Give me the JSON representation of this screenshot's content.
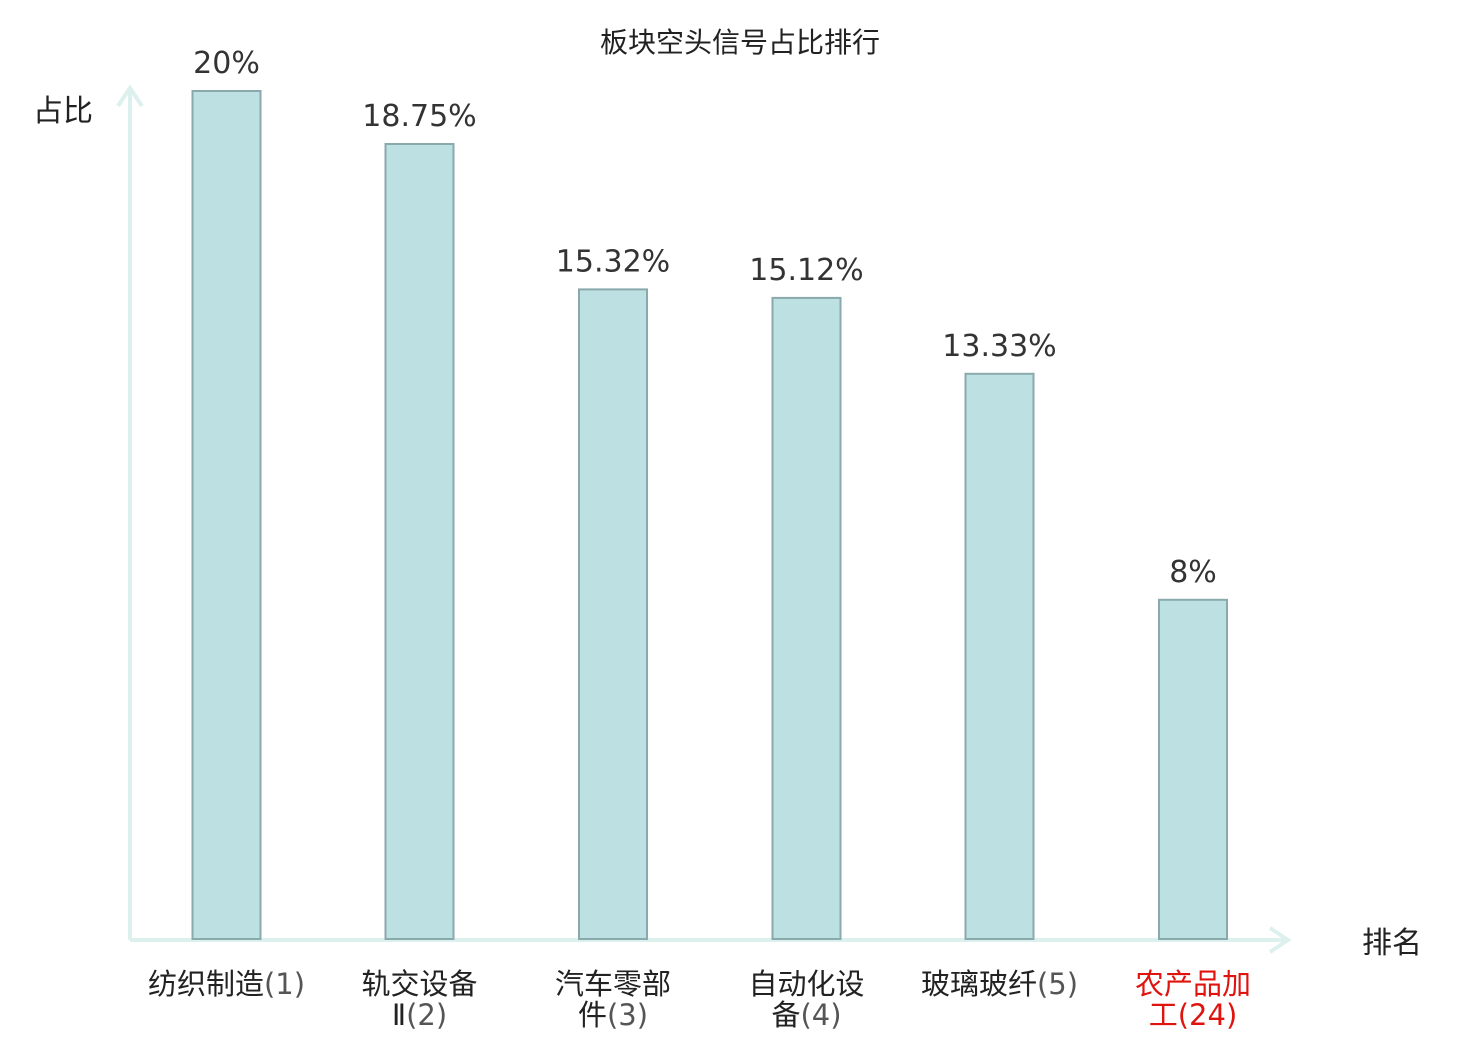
{
  "chart_data": {
    "type": "bar",
    "title": "板块空头信号占比排行",
    "ylabel": "占比",
    "xlabel": "排名",
    "ylim": [
      0,
      20
    ],
    "grid": false,
    "categories": [
      {
        "name_lines": [
          "纺织制造"
        ],
        "rank": "(1)",
        "highlight": false
      },
      {
        "name_lines": [
          "轨交设备",
          "Ⅱ"
        ],
        "rank": "(2)",
        "highlight": false
      },
      {
        "name_lines": [
          "汽车零部",
          "件"
        ],
        "rank": "(3)",
        "highlight": false
      },
      {
        "name_lines": [
          "自动化设",
          "备"
        ],
        "rank": "(4)",
        "highlight": false
      },
      {
        "name_lines": [
          "玻璃玻纤"
        ],
        "rank": "(5)",
        "highlight": false
      },
      {
        "name_lines": [
          "农产品加",
          "工"
        ],
        "rank": "(24)",
        "highlight": true
      }
    ],
    "values": [
      20,
      18.75,
      15.32,
      15.12,
      13.33,
      8
    ],
    "value_labels": [
      "20%",
      "18.75%",
      "15.32%",
      "15.12%",
      "13.33%",
      "8%"
    ]
  },
  "colors": {
    "bar_fill": "#bde0e3",
    "bar_stroke": "#8aa9ac",
    "axis": "#dcf1ee",
    "highlight": "#e0140f"
  }
}
